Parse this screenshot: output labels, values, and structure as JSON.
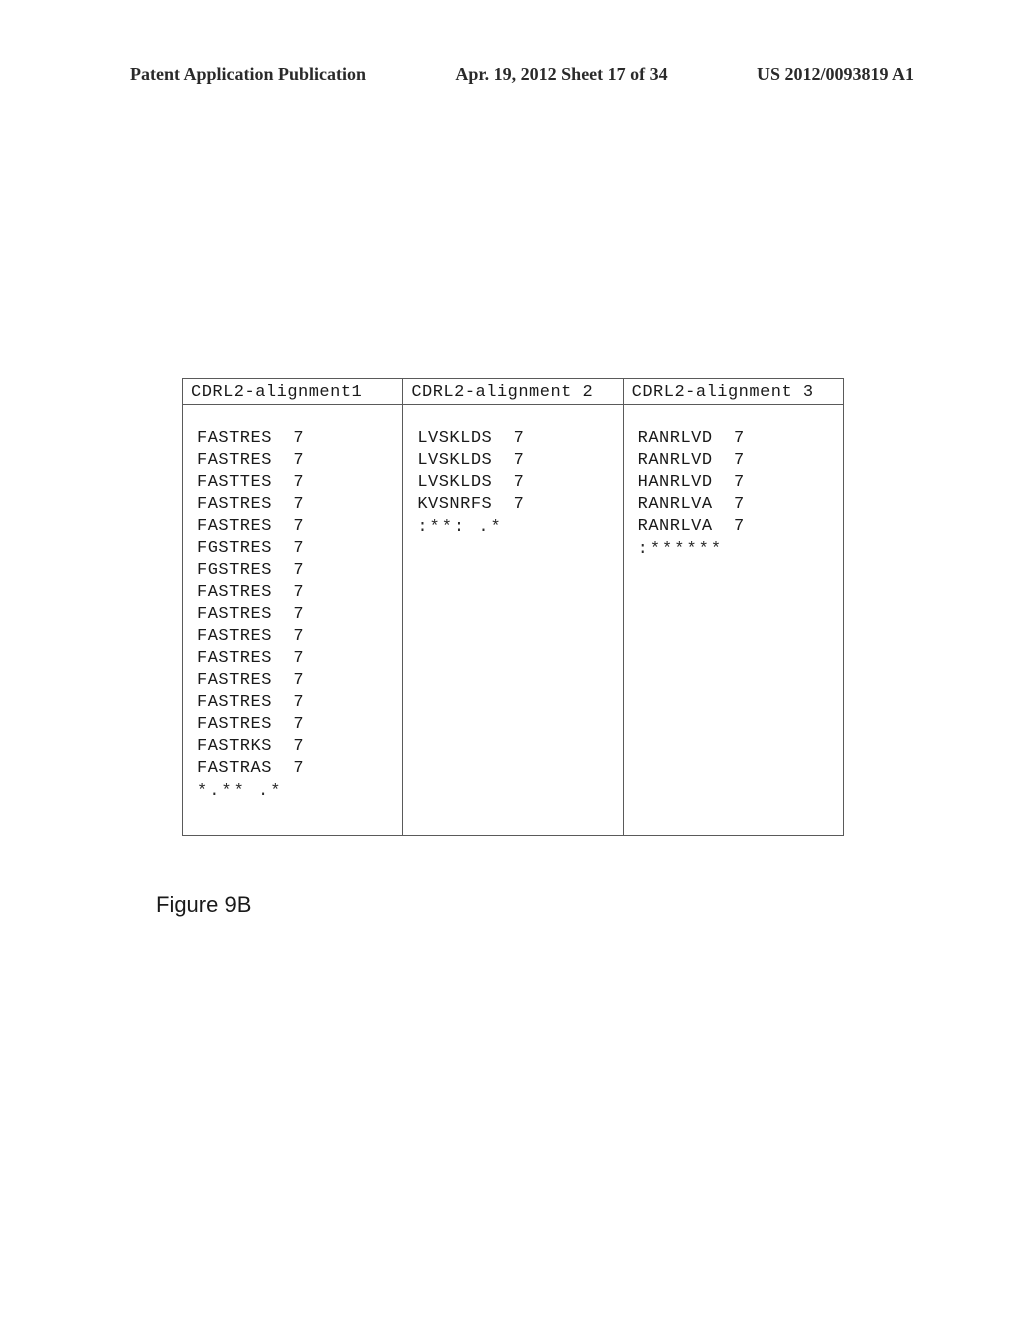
{
  "header": {
    "left": "Patent Application Publication",
    "center": "Apr. 19, 2012  Sheet 17 of 34",
    "right": "US 2012/0093819 A1"
  },
  "figure": {
    "caption": "Figure 9B",
    "columns": [
      {
        "header": "CDRL2-alignment1"
      },
      {
        "header": "CDRL2-alignment 2"
      },
      {
        "header": "CDRL2-alignment 3"
      }
    ],
    "alignments": [
      {
        "rows": [
          {
            "seq": "FASTRES",
            "len": "7"
          },
          {
            "seq": "FASTRES",
            "len": "7"
          },
          {
            "seq": "FASTTES",
            "len": "7"
          },
          {
            "seq": "FASTRES",
            "len": "7"
          },
          {
            "seq": "FASTRES",
            "len": "7"
          },
          {
            "seq": "FGSTRES",
            "len": "7"
          },
          {
            "seq": "FGSTRES",
            "len": "7"
          },
          {
            "seq": "FASTRES",
            "len": "7"
          },
          {
            "seq": "FASTRES",
            "len": "7"
          },
          {
            "seq": "FASTRES",
            "len": "7"
          },
          {
            "seq": "FASTRES",
            "len": "7"
          },
          {
            "seq": "FASTRES",
            "len": "7"
          },
          {
            "seq": "FASTRES",
            "len": "7"
          },
          {
            "seq": "FASTRES",
            "len": "7"
          },
          {
            "seq": "FASTRKS",
            "len": "7"
          },
          {
            "seq": "FASTRAS",
            "len": "7"
          }
        ],
        "consensus": "*.** .*"
      },
      {
        "rows": [
          {
            "seq": "LVSKLDS",
            "len": "7"
          },
          {
            "seq": "LVSKLDS",
            "len": "7"
          },
          {
            "seq": "LVSKLDS",
            "len": "7"
          },
          {
            "seq": "KVSNRFS",
            "len": "7"
          }
        ],
        "consensus": ":**: .*"
      },
      {
        "rows": [
          {
            "seq": "RANRLVD",
            "len": "7"
          },
          {
            "seq": "RANRLVD",
            "len": "7"
          },
          {
            "seq": "HANRLVD",
            "len": "7"
          },
          {
            "seq": "RANRLVA",
            "len": "7"
          },
          {
            "seq": "RANRLVA",
            "len": "7"
          }
        ],
        "consensus": ":******"
      }
    ]
  }
}
